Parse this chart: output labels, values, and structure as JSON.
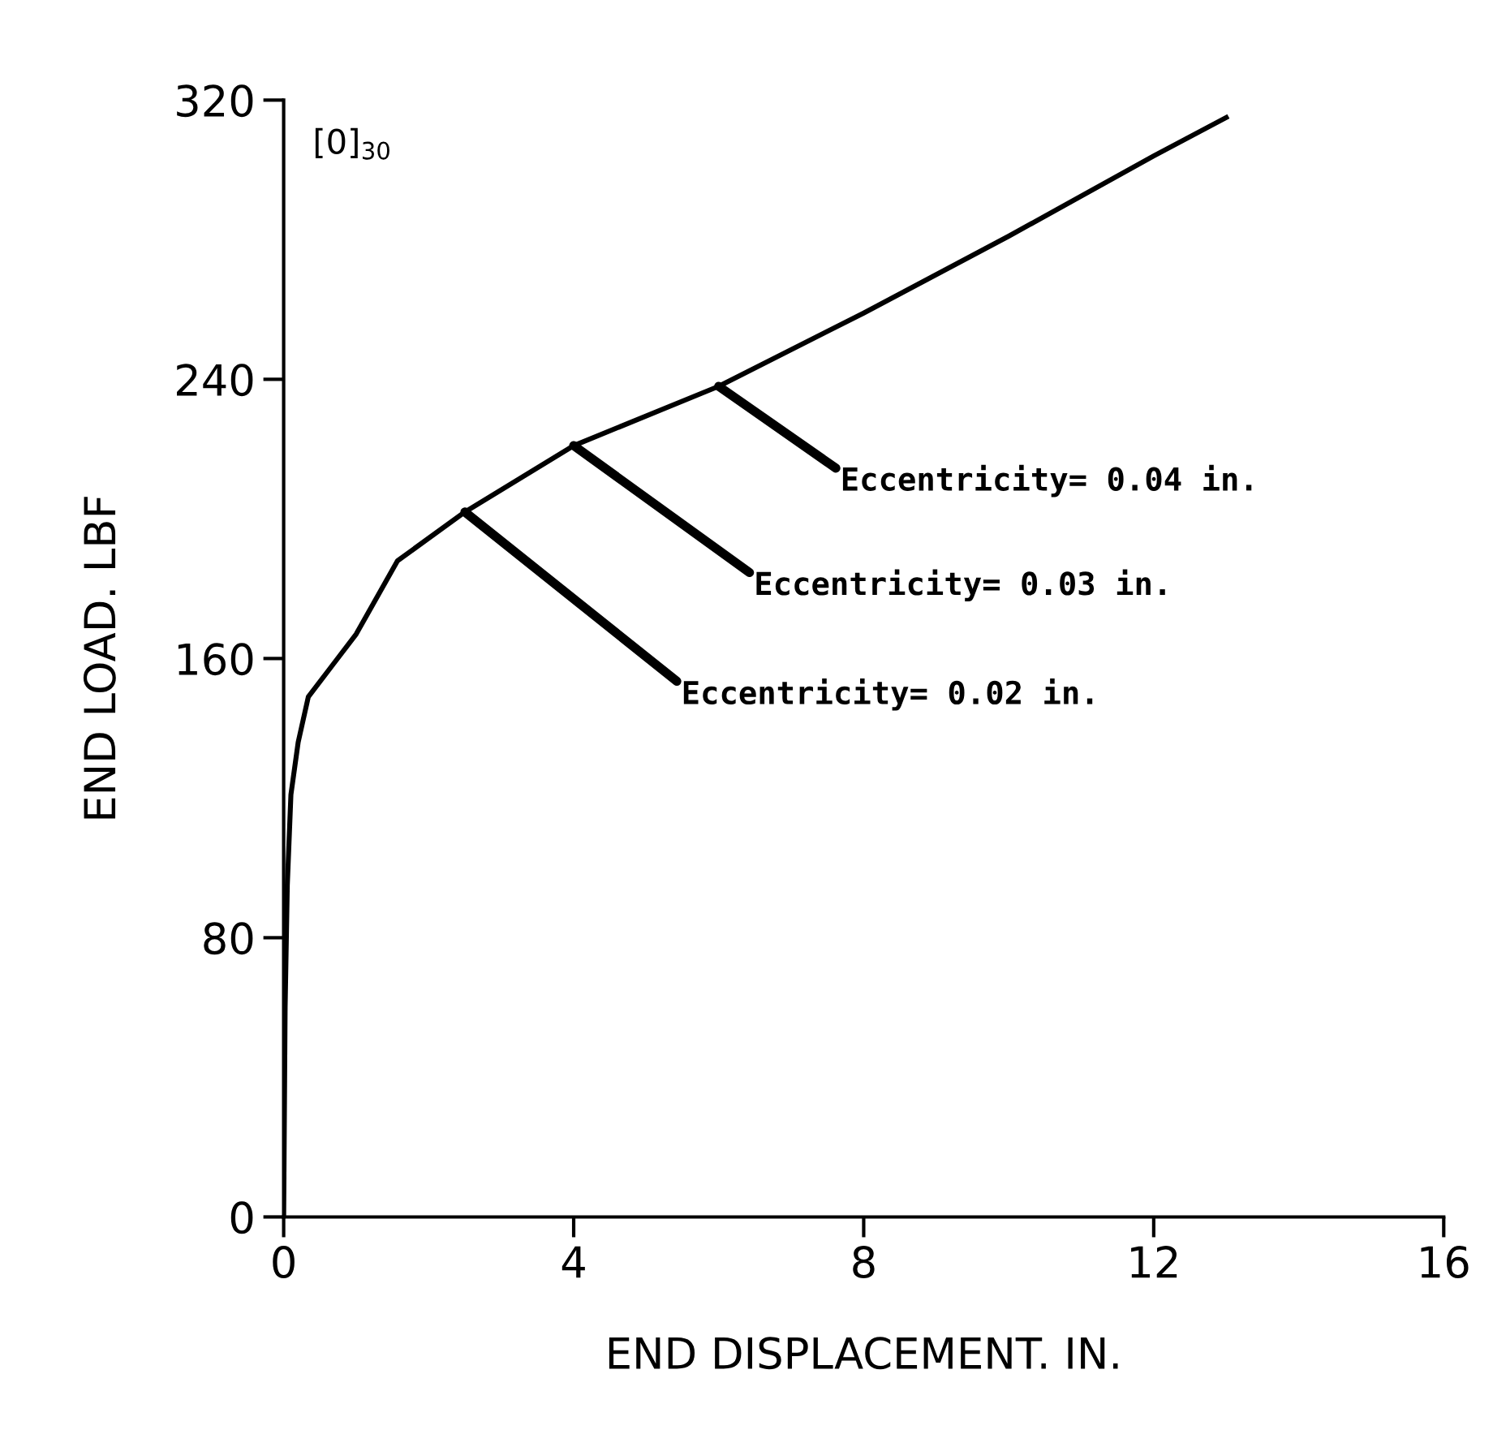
{
  "chart_data": {
    "type": "line",
    "xlabel": "END DISPLACEMENT. IN.",
    "ylabel": "END LOAD. LBF",
    "x": [
      0,
      0.02,
      0.05,
      0.1,
      0.2,
      0.34,
      0.67,
      1.0,
      1.57,
      2.5,
      4.0,
      6.0,
      8.0,
      10.0,
      12.0,
      13.0
    ],
    "series": [
      {
        "color": "#000000",
        "values": [
          0,
          60,
          95,
          121,
          136,
          149,
          158,
          167,
          188,
          202,
          221,
          238,
          259,
          281,
          304,
          315
        ]
      }
    ],
    "xlim": [
      0,
      16
    ],
    "xticks": [
      0,
      4,
      8,
      12,
      16
    ],
    "ylim": [
      0,
      320
    ],
    "yticks": [
      0,
      80,
      160,
      240,
      320
    ],
    "grid": false,
    "marker": "none",
    "line_style": "solid",
    "annotations": [
      "[0]$_{30}$",
      {
        "text": "Eccentricity= 0.04 in.",
        "x": 6.0,
        "y": 238
      },
      {
        "text": "Eccentricity= 0.03 in.",
        "x": 4.0,
        "y": 221
      },
      {
        "text": "Eccentricity= 0.02 in.",
        "x": 2.5,
        "y": 202
      }
    ]
  }
}
